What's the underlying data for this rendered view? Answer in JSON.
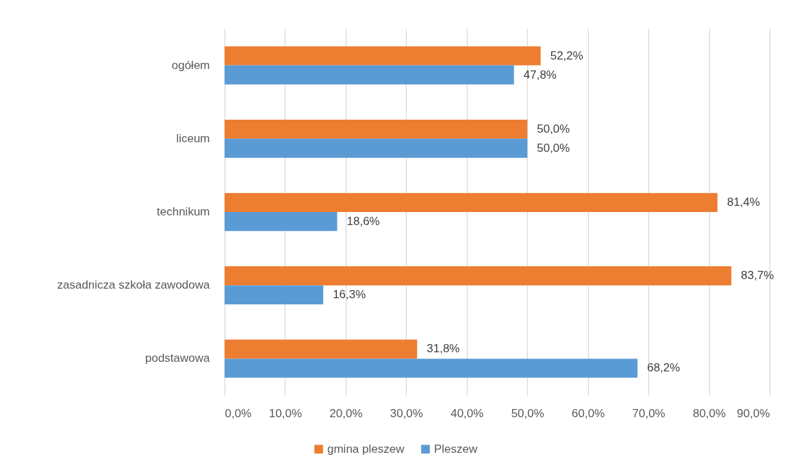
{
  "chart_data": {
    "type": "bar",
    "orientation": "horizontal",
    "categories": [
      "ogółem",
      "liceum",
      "technikum",
      "zasadnicza szkoła zawodowa",
      "podstawowa"
    ],
    "series": [
      {
        "name": "gmina pleszew",
        "color": "#ed7d31",
        "values": [
          52.2,
          50.0,
          81.4,
          83.7,
          31.8
        ],
        "value_labels": [
          "52,2%",
          "50,0%",
          "81,4%",
          "83,7%",
          "31,8%"
        ]
      },
      {
        "name": "Pleszew",
        "color": "#5b9bd5",
        "values": [
          47.8,
          50.0,
          18.6,
          16.3,
          68.2
        ],
        "value_labels": [
          "47,8%",
          "50,0%",
          "18,6%",
          "16,3%",
          "68,2%"
        ]
      }
    ],
    "xlim": [
      0,
      90
    ],
    "xticks": [
      {
        "value": 0,
        "label": "0,0%"
      },
      {
        "value": 10,
        "label": "10,0%"
      },
      {
        "value": 20,
        "label": "20,0%"
      },
      {
        "value": 30,
        "label": "30,0%"
      },
      {
        "value": 40,
        "label": "40,0%"
      },
      {
        "value": 50,
        "label": "50,0%"
      },
      {
        "value": 60,
        "label": "60,0%"
      },
      {
        "value": 70,
        "label": "70,0%"
      },
      {
        "value": 80,
        "label": "80,0%"
      },
      {
        "value": 90,
        "label": "90,0%"
      }
    ],
    "grid": "x",
    "legend": "bottom"
  }
}
